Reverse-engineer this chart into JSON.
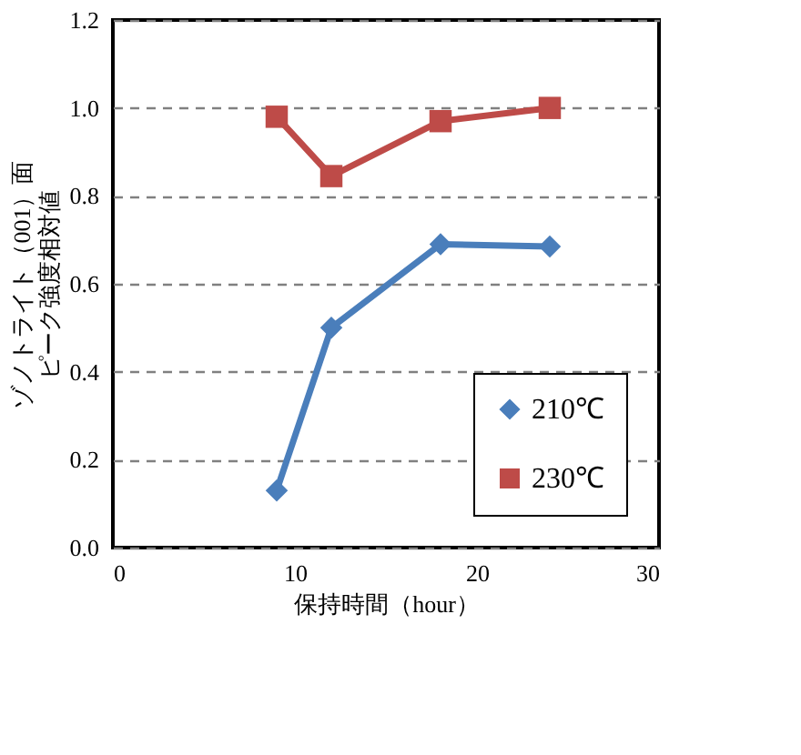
{
  "chart_data": {
    "type": "line",
    "xlabel": "保持時間（hour）",
    "ylabel": [
      "ゾノトライト（001）面",
      "ピーク強度相対値"
    ],
    "x": [
      9,
      12,
      18,
      24
    ],
    "series": [
      {
        "name": "210℃",
        "color": "#4a7ebb",
        "marker": "diamond",
        "values": [
          0.13,
          0.5,
          0.69,
          0.685
        ]
      },
      {
        "name": "230℃",
        "color": "#be4b48",
        "marker": "square",
        "values": [
          0.98,
          0.845,
          0.97,
          1.0
        ]
      }
    ],
    "xlim": [
      0,
      30
    ],
    "xticks": [
      0,
      10,
      20,
      30
    ],
    "ylim": [
      0,
      1.2
    ],
    "yticks": [
      {
        "value": 0,
        "label": "0.0"
      },
      {
        "value": 0.2,
        "label": "0.2"
      },
      {
        "value": 0.4,
        "label": "0.4"
      },
      {
        "value": 0.6,
        "label": "0.6"
      },
      {
        "value": 0.8,
        "label": "0.8"
      },
      {
        "value": 1.0,
        "label": "1.0"
      },
      {
        "value": 1.2,
        "label": "1.2"
      }
    ],
    "grid": "y",
    "legend": "bottom right",
    "line_style": "solid"
  }
}
